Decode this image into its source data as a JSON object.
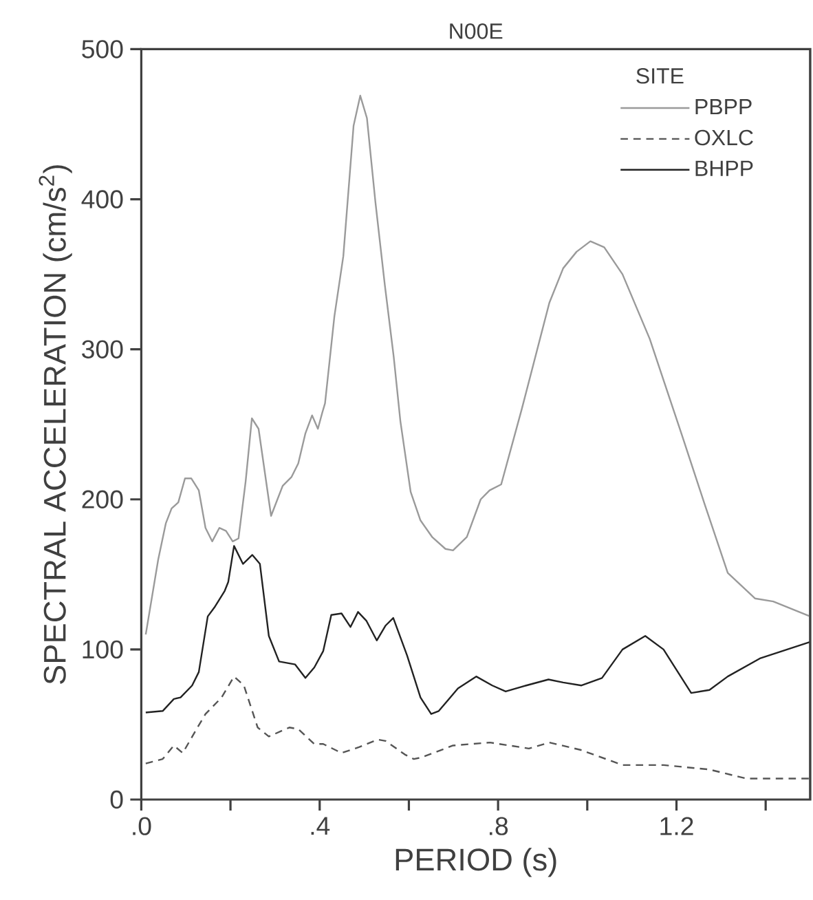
{
  "chart_data": {
    "type": "line",
    "title": "N00E",
    "xlabel": "PERIOD (s)",
    "ylabel": "SPECTRAL ACCELERATION (cm/s$^{2}$)",
    "legend_title": "SITE",
    "legend": "top right",
    "grid": false,
    "marker": "none",
    "xlim": [
      0,
      1.5
    ],
    "ylim": [
      0,
      500
    ],
    "xticks": [
      {
        "value": 0,
        "label": ".0"
      },
      {
        "value": 0.2,
        "label": null
      },
      {
        "value": 0.4,
        "label": ".4"
      },
      {
        "value": 0.6,
        "label": null
      },
      {
        "value": 0.8,
        "label": ".8"
      },
      {
        "value": 1.0,
        "label": null
      },
      {
        "value": 1.2,
        "label": "1.2"
      },
      {
        "value": 1.4,
        "label": null
      }
    ],
    "yticks": [
      0,
      100,
      200,
      300,
      400,
      500
    ],
    "series": [
      {
        "name": "PBPP",
        "color": "#9a9a9a",
        "line_style": "solid",
        "x": [
          0.01,
          0.038,
          0.055,
          0.068,
          0.083,
          0.098,
          0.112,
          0.129,
          0.144,
          0.159,
          0.175,
          0.19,
          0.205,
          0.218,
          0.234,
          0.248,
          0.263,
          0.291,
          0.317,
          0.337,
          0.352,
          0.368,
          0.383,
          0.396,
          0.406,
          0.412,
          0.433,
          0.453,
          0.476,
          0.491,
          0.506,
          0.525,
          0.546,
          0.566,
          0.581,
          0.604,
          0.626,
          0.652,
          0.682,
          0.699,
          0.73,
          0.761,
          0.781,
          0.807,
          0.853,
          0.915,
          0.946,
          0.976,
          1.007,
          1.038,
          1.079,
          1.14,
          1.212,
          1.263,
          1.315,
          1.376,
          1.417,
          1.5
        ],
        "values": [
          110,
          160,
          184,
          194,
          198,
          214,
          214,
          206,
          181,
          172,
          181,
          179,
          172,
          174,
          212,
          254,
          247,
          189,
          209,
          215,
          224,
          244,
          256,
          247,
          258,
          264,
          322,
          362,
          449,
          469,
          454,
          398,
          343,
          295,
          252,
          205,
          186,
          175,
          167,
          166,
          175,
          200,
          206,
          210,
          260,
          331,
          354,
          365,
          372,
          368,
          350,
          307,
          243,
          197,
          151,
          134,
          132,
          122
        ]
      },
      {
        "name": "OXLC",
        "color": "#555555",
        "line_style": "dashed",
        "x": [
          0.01,
          0.048,
          0.073,
          0.093,
          0.124,
          0.144,
          0.18,
          0.208,
          0.23,
          0.261,
          0.286,
          0.332,
          0.352,
          0.388,
          0.408,
          0.449,
          0.489,
          0.53,
          0.548,
          0.591,
          0.611,
          0.628,
          0.699,
          0.782,
          0.869,
          0.915,
          0.986,
          1.079,
          1.171,
          1.274,
          1.356,
          1.5
        ],
        "values": [
          24,
          27,
          36,
          31,
          47,
          57,
          68,
          82,
          76,
          48,
          42,
          48,
          47,
          37,
          37,
          31,
          35,
          40,
          39,
          30,
          27,
          28,
          36,
          38,
          34,
          38,
          33,
          23,
          23,
          20,
          14,
          14
        ]
      },
      {
        "name": "BHPP",
        "color": "#222222",
        "line_style": "solid",
        "x": [
          0.01,
          0.048,
          0.073,
          0.088,
          0.114,
          0.129,
          0.149,
          0.164,
          0.187,
          0.195,
          0.208,
          0.228,
          0.249,
          0.266,
          0.286,
          0.309,
          0.345,
          0.368,
          0.388,
          0.408,
          0.426,
          0.449,
          0.469,
          0.486,
          0.505,
          0.528,
          0.548,
          0.565,
          0.596,
          0.626,
          0.65,
          0.667,
          0.71,
          0.751,
          0.787,
          0.817,
          0.863,
          0.913,
          0.946,
          0.987,
          1.033,
          1.079,
          1.13,
          1.171,
          1.233,
          1.274,
          1.315,
          1.387,
          1.5
        ],
        "values": [
          58,
          59,
          67,
          68,
          76,
          85,
          122,
          128,
          139,
          145,
          169,
          157,
          163,
          157,
          109,
          92,
          90,
          81,
          88,
          99,
          123,
          124,
          115,
          125,
          119,
          106,
          116,
          121,
          96,
          68,
          57,
          59,
          74,
          82,
          76,
          72,
          76,
          80,
          78,
          76,
          81,
          100,
          109,
          100,
          71,
          73,
          82,
          94,
          105
        ]
      }
    ]
  }
}
